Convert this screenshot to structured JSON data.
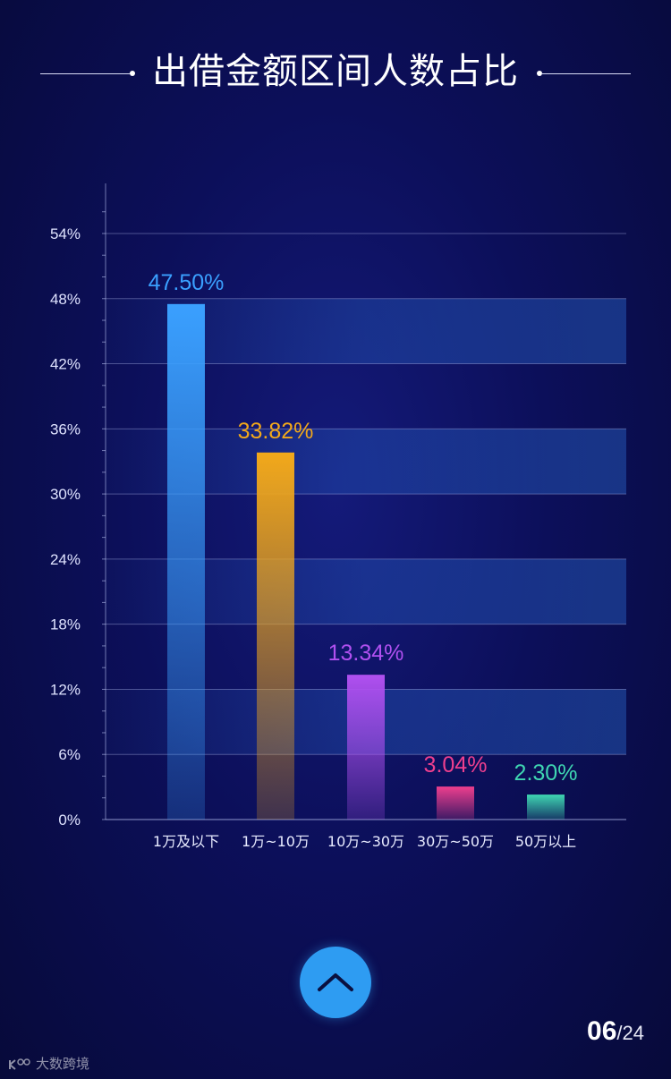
{
  "title": "出借金额区间人数占比",
  "chart_data": {
    "type": "bar",
    "categories": [
      "1万及以下",
      "1万~10万",
      "10万~30万",
      "30万~50万",
      "50万以上"
    ],
    "values": [
      47.5,
      33.82,
      13.34,
      3.04,
      2.3
    ],
    "value_labels": [
      "47.50%",
      "33.82%",
      "13.34%",
      "3.04%",
      "2.30%"
    ],
    "colors": [
      "#3aa0ff",
      "#f2a81a",
      "#b050f0",
      "#ee3f8e",
      "#3fd6b2"
    ],
    "label_colors": [
      "#3aa0ff",
      "#f2a81a",
      "#b050f0",
      "#ee3f8e",
      "#3fd6b2"
    ],
    "yticks": [
      "0%",
      "6%",
      "12%",
      "18%",
      "24%",
      "30%",
      "36%",
      "42%",
      "48%",
      "54%"
    ],
    "ytick_values": [
      0,
      6,
      12,
      18,
      24,
      30,
      36,
      42,
      48,
      54
    ],
    "ylim": [
      0,
      58
    ],
    "grid": true,
    "xlabel": "",
    "ylabel": ""
  },
  "pagination": {
    "current": "06",
    "separator": "/",
    "total": "24"
  },
  "watermark": {
    "text": "大数跨境"
  },
  "icons": {
    "up_button": "chevron-up-icon"
  }
}
